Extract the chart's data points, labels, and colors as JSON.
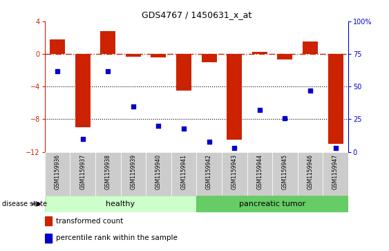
{
  "title": "GDS4767 / 1450631_x_at",
  "samples": [
    "GSM1159936",
    "GSM1159937",
    "GSM1159938",
    "GSM1159939",
    "GSM1159940",
    "GSM1159941",
    "GSM1159942",
    "GSM1159943",
    "GSM1159944",
    "GSM1159945",
    "GSM1159946",
    "GSM1159947"
  ],
  "transformed_count": [
    1.8,
    -9.0,
    2.8,
    -0.3,
    -0.4,
    -4.5,
    -1.0,
    -10.5,
    0.3,
    -0.7,
    1.5,
    -11.0
  ],
  "percentile_rank": [
    62,
    10,
    62,
    35,
    20,
    18,
    8,
    3,
    32,
    26,
    47,
    3
  ],
  "group": [
    "healthy",
    "healthy",
    "healthy",
    "healthy",
    "healthy",
    "healthy",
    "pancreatic tumor",
    "pancreatic tumor",
    "pancreatic tumor",
    "pancreatic tumor",
    "pancreatic tumor",
    "pancreatic tumor"
  ],
  "bar_color": "#cc2200",
  "dot_color": "#0000cc",
  "ylim_left": [
    -12,
    4
  ],
  "ylim_right": [
    0,
    100
  ],
  "yticks_left": [
    -12,
    -8,
    -4,
    0,
    4
  ],
  "yticks_right": [
    0,
    25,
    50,
    75,
    100
  ],
  "dotted_lines": [
    -4,
    -8
  ],
  "healthy_color": "#ccffcc",
  "tumor_color": "#66cc66",
  "tick_area_color": "#cccccc",
  "n_healthy": 6,
  "n_tumor": 6
}
